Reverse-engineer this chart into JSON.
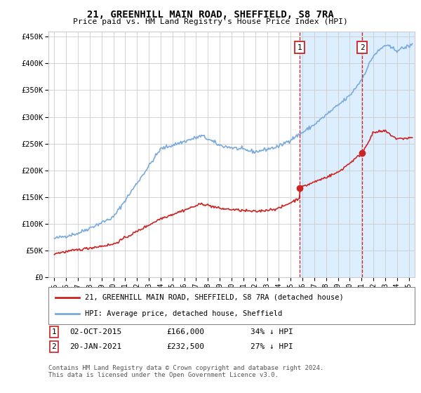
{
  "title": "21, GREENHILL MAIN ROAD, SHEFFIELD, S8 7RA",
  "subtitle": "Price paid vs. HM Land Registry's House Price Index (HPI)",
  "legend_line1": "21, GREENHILL MAIN ROAD, SHEFFIELD, S8 7RA (detached house)",
  "legend_line2": "HPI: Average price, detached house, Sheffield",
  "annotation1_label": "1",
  "annotation1_date": "02-OCT-2015",
  "annotation1_price": "£166,000",
  "annotation1_hpi": "34% ↓ HPI",
  "annotation1_year": 2015.75,
  "annotation1_value": 166000,
  "annotation2_label": "2",
  "annotation2_date": "20-JAN-2021",
  "annotation2_price": "£232,500",
  "annotation2_hpi": "27% ↓ HPI",
  "annotation2_year": 2021.05,
  "annotation2_value": 232500,
  "footer": "Contains HM Land Registry data © Crown copyright and database right 2024.\nThis data is licensed under the Open Government Licence v3.0.",
  "ylim": [
    0,
    460000
  ],
  "xlim_start": 1994.5,
  "xlim_end": 2025.5,
  "yticks": [
    0,
    50000,
    100000,
    150000,
    200000,
    250000,
    300000,
    350000,
    400000,
    450000
  ],
  "ytick_labels": [
    "£0",
    "£50K",
    "£100K",
    "£150K",
    "£200K",
    "£250K",
    "£300K",
    "£350K",
    "£400K",
    "£450K"
  ],
  "xticks": [
    1995,
    1996,
    1997,
    1998,
    1999,
    2000,
    2001,
    2002,
    2003,
    2004,
    2005,
    2006,
    2007,
    2008,
    2009,
    2010,
    2011,
    2012,
    2013,
    2014,
    2015,
    2016,
    2017,
    2018,
    2019,
    2020,
    2021,
    2022,
    2023,
    2024,
    2025
  ],
  "hpi_color": "#7aaadd",
  "price_color": "#cc2222",
  "shaded_color": "#ddeeff",
  "background_color": "#ffffff",
  "grid_color": "#cccccc",
  "annotation_box_color": "#cc2222"
}
